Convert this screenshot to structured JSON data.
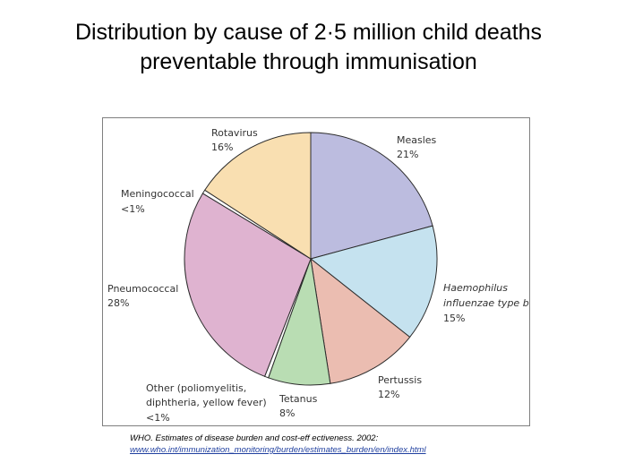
{
  "title": {
    "line1": "Distribution by cause of 2·5 million child deaths",
    "line2": "preventable through immunisation"
  },
  "chart_data": {
    "type": "pie",
    "slices": [
      {
        "name": "Measles",
        "value": 21,
        "label_value": "21%",
        "color": "#bcbcdf"
      },
      {
        "name": "Haemophilus influenzae type b",
        "value": 15,
        "label_value": "15%",
        "color": "#c5e2ef"
      },
      {
        "name": "Pertussis",
        "value": 12,
        "label_value": "12%",
        "color": "#ebbdb1"
      },
      {
        "name": "Tetanus",
        "value": 8,
        "label_value": "8%",
        "color": "#b9ddb3"
      },
      {
        "name": "Other (poliomyelitis, diphtheria, yellow fever)",
        "value": 0.5,
        "label_value": "<1%",
        "color": "#ffffff"
      },
      {
        "name": "Pneumococcal",
        "value": 28,
        "label_value": "28%",
        "color": "#dfb3d0"
      },
      {
        "name": "Meningococcal",
        "value": 0.5,
        "label_value": "<1%",
        "color": "#ffffff"
      },
      {
        "name": "Rotavirus",
        "value": 16,
        "label_value": "16%",
        "color": "#f9dfb1"
      }
    ],
    "labels": {
      "measles": [
        "Measles",
        "21%"
      ],
      "hib": [
        "Haemophilus",
        "influenzae type b",
        "15%"
      ],
      "pertussis": [
        "Pertussis",
        "12%"
      ],
      "tetanus": [
        "Tetanus",
        "8%"
      ],
      "other": [
        "Other (poliomyelitis,",
        "diphtheria, yellow fever)",
        "<1%"
      ],
      "pneumococcal": [
        "Pneumococcal",
        "28%"
      ],
      "meningococcal": [
        "Meningococcal",
        "<1%"
      ],
      "rotavirus": [
        "Rotavirus",
        "16%"
      ]
    }
  },
  "citation": {
    "line1": "WHO. Estimates of disease burden and cost-eff ectiveness. 2002:",
    "line2": "www.who.int/immunization_monitoring/burden/estimates_burden/en/index.html"
  }
}
